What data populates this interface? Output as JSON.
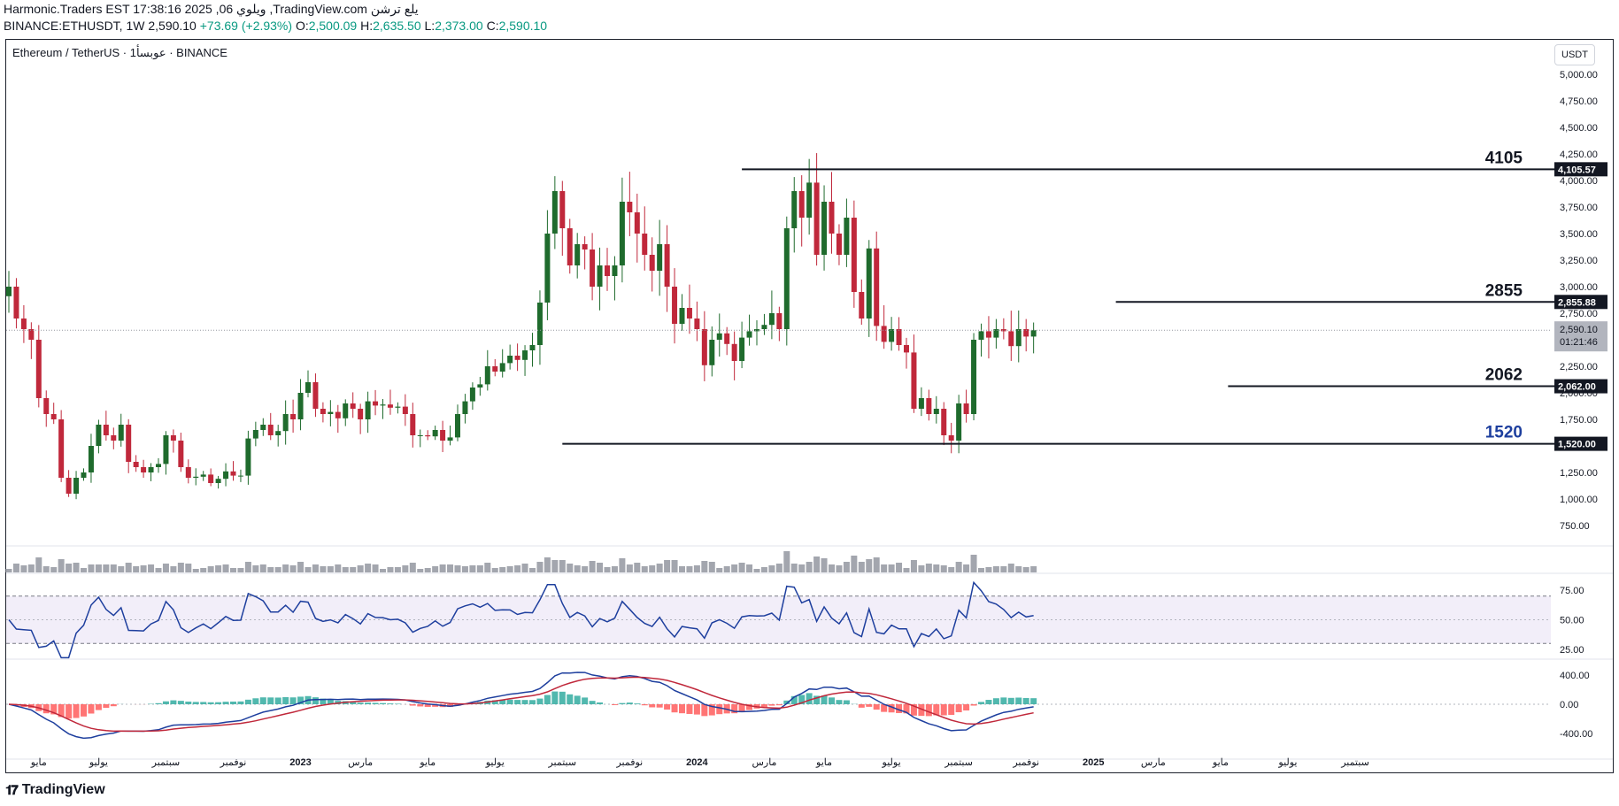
{
  "header": {
    "line1": "Harmonic.Traders EST 17:38:16 2025 ,06 ويلوي ,TradingView.com يلع ترشن",
    "symbol_line": "BINANCE:ETHUSDT, 1W 2,590.10",
    "change": "+73.69 (+2.93%)",
    "o_label": "O:",
    "o": "2,500.09",
    "h_label": "H:",
    "h": "2,635.50",
    "l_label": "L:",
    "l": "2,373.00",
    "c_label": "C:",
    "c": "2,590.10"
  },
  "legend": "Ethereum / TetherUS · 1عوبسأ · BINANCE",
  "currency_button": "USDT",
  "logo": "TradingView",
  "colors": {
    "up": "#1f6b2d",
    "down": "#c0283b",
    "rsi": "#1e3f9e",
    "macd": "#1e3f9e",
    "signal": "#c0283b"
  },
  "chart_data": {
    "type": "candlestick",
    "symbol": "ETHUSDT",
    "timeframe": "1W",
    "ylim": [
      600,
      5200
    ],
    "y_ticks": [
      "5,000.00",
      "4,750.00",
      "4,500.00",
      "4,250.00",
      "4,000.00",
      "3,750.00",
      "3,500.00",
      "3,250.00",
      "3,000.00",
      "2,750.00",
      "2,500.00",
      "2,250.00",
      "2,000.00",
      "1,750.00",
      "1,500.00",
      "1,250.00",
      "1,000.00",
      "750.00"
    ],
    "y_tick_values": [
      5000,
      4750,
      4500,
      4250,
      4000,
      3750,
      3500,
      3250,
      3000,
      2750,
      2500,
      2250,
      2000,
      1750,
      1500,
      1250,
      1000,
      750
    ],
    "x_ticks": [
      "مايو",
      "يوليو",
      "سبتمبر",
      "نوفمبر",
      "2023",
      "مارس",
      "مايو",
      "يوليو",
      "سبتمبر",
      "نوفمبر",
      "2024",
      "مارس",
      "مايو",
      "يوليو",
      "سبتمبر",
      "نوفمبر",
      "2025",
      "مارس",
      "مايو",
      "يوليو",
      "سبتمبر"
    ],
    "x_tick_index": [
      4,
      12,
      21,
      30,
      39,
      47,
      56,
      65,
      74,
      83,
      92,
      101,
      109,
      118,
      127,
      136,
      145,
      153,
      162,
      171,
      180
    ],
    "bold_ticks": [
      "2023",
      "2024",
      "2025"
    ],
    "levels": [
      {
        "label": "4105",
        "price_tag": "4,105.57",
        "value": 4105.57,
        "from": 98,
        "label_color": "#131722"
      },
      {
        "label": "2855",
        "price_tag": "2,855.88",
        "value": 2855.88,
        "from": 148,
        "label_color": "#131722"
      },
      {
        "label": "2062",
        "price_tag": "2,062.00",
        "value": 2062,
        "from": 163,
        "label_color": "#131722"
      },
      {
        "label": "1520",
        "price_tag": "1,520.00",
        "value": 1520,
        "from": 74,
        "label_color": "#1e3f9e"
      }
    ],
    "last_price": {
      "value": 2590.1,
      "label": "2,590.10",
      "countdown": "01:21:46"
    },
    "closes": [
      3000,
      2700,
      2600,
      2500,
      1950,
      1800,
      1750,
      1200,
      1050,
      1200,
      1250,
      1500,
      1700,
      1600,
      1550,
      1700,
      1350,
      1300,
      1250,
      1300,
      1330,
      1600,
      1550,
      1300,
      1200,
      1210,
      1230,
      1150,
      1190,
      1260,
      1220,
      1220,
      1570,
      1650,
      1700,
      1600,
      1640,
      1800,
      1750,
      2000,
      2100,
      1850,
      1800,
      1820,
      1760,
      1900,
      1850,
      1750,
      1920,
      1880,
      1890,
      1860,
      1870,
      1800,
      1600,
      1600,
      1590,
      1650,
      1550,
      1580,
      1800,
      1920,
      2050,
      2080,
      2250,
      2200,
      2280,
      2350,
      2310,
      2400,
      2450,
      2850,
      3500,
      3900,
      3550,
      3200,
      3400,
      3350,
      3000,
      3200,
      3100,
      3200,
      3800,
      3700,
      3500,
      3300,
      3150,
      3400,
      3000,
      2650,
      2800,
      2700,
      2600,
      2260,
      2500,
      2560,
      2460,
      2300,
      2520,
      2580,
      2600,
      2640,
      2750,
      2600,
      3550,
      3900,
      3650,
      3980,
      3300,
      3800,
      3500,
      3300,
      3650,
      2950,
      2700,
      3360,
      2630,
      2480,
      2600,
      2450,
      2380,
      1850,
      1950,
      1800,
      1850,
      1600,
      1550,
      1900,
      1800,
      2500,
      2580,
      2520,
      2600,
      2580,
      2440,
      2600,
      2530,
      2590
    ],
    "rsi": {
      "overbought": 70,
      "oversold": 30,
      "ticks": [
        "75.00",
        "50.00",
        "25.00"
      ],
      "tick_values": [
        75,
        50,
        25
      ]
    },
    "macd": {
      "ticks": [
        "400.00",
        "0.00",
        "-400.00"
      ],
      "tick_values": [
        400,
        0,
        -400
      ]
    },
    "volume": true
  }
}
